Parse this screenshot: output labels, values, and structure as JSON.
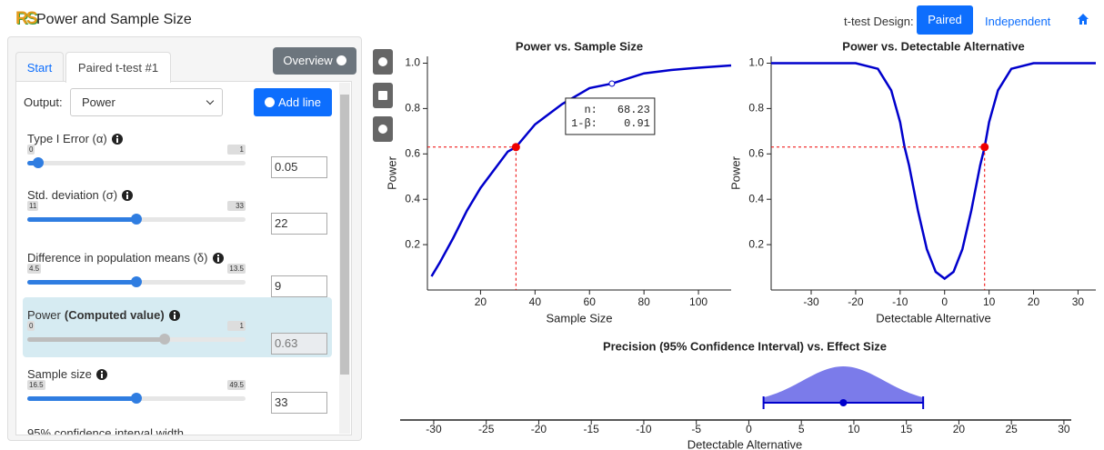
{
  "header": {
    "logo": "RS",
    "title": "Power and Sample Size",
    "design_label": "t-test Design:",
    "design_options": [
      "Paired",
      "Independent"
    ]
  },
  "panel": {
    "tabs": [
      "Start",
      "Paired t-test #1"
    ],
    "overview": "Overview",
    "output_label": "Output:",
    "output": "Power",
    "add_line": "Add line",
    "inputs": [
      {
        "label": "Type I Error (α)",
        "min": 0,
        "max": 1,
        "value": 0.05
      },
      {
        "label": "Std. deviation (σ)",
        "min": 11,
        "max": 33,
        "value": 22
      },
      {
        "label": "Difference in population means (δ)",
        "min": 4.5,
        "max": 13.5,
        "value": 9
      },
      {
        "label": "Power",
        "note": "(Computed value)",
        "min": 0,
        "max": 1,
        "value": 0.63,
        "computed": true
      },
      {
        "label": "Sample size",
        "min": 16.5,
        "max": 49.5,
        "value": 33
      }
    ],
    "clipped_label": "95% confidence interval width"
  },
  "chart_data": [
    {
      "type": "line",
      "title": "Power vs. Sample Size",
      "x_label": "Sample Size",
      "y_label": "Power",
      "x": [
        2,
        5,
        10,
        15,
        20,
        25,
        30,
        33,
        40,
        50,
        60,
        68.23,
        80,
        90,
        100,
        112
      ],
      "series": [
        {
          "color": "#0000cc",
          "values": [
            0.06,
            0.12,
            0.23,
            0.35,
            0.45,
            0.53,
            0.61,
            0.63,
            0.73,
            0.82,
            0.89,
            0.91,
            0.955,
            0.97,
            0.98,
            0.99
          ]
        }
      ],
      "xlim": [
        0.5,
        112
      ],
      "ylim": [
        0,
        1.03
      ],
      "xticks": [
        20,
        40,
        60,
        80,
        100
      ],
      "yticks": [
        0.2,
        0.4,
        0.6,
        {
          "value": 0.8,
          "label": "0.8"
        },
        {
          "value": 1,
          "label": "1.0"
        }
      ],
      "highlight": {
        "x": 33,
        "y": 0.63,
        "color": "#ee0000"
      },
      "hover": {
        "x": 68.23,
        "y": 0.91,
        "x_name": "n:",
        "y_name": "1-β:"
      }
    },
    {
      "type": "line",
      "title": "Power vs. Detectable Alternative",
      "x_label": "Detectable Alternative",
      "y_label": "Power",
      "x": [
        -39,
        -25,
        -20,
        -15,
        -12,
        -10,
        -9,
        -8,
        -6,
        -4,
        -2,
        0,
        2,
        4,
        6,
        8,
        9,
        10,
        12,
        15,
        20,
        25,
        34
      ],
      "series": [
        {
          "color": "#0000cc",
          "values": [
            1,
            1,
            1,
            0.975,
            0.88,
            0.74,
            0.63,
            0.55,
            0.35,
            0.18,
            0.08,
            0.05,
            0.08,
            0.18,
            0.35,
            0.55,
            0.63,
            0.74,
            0.88,
            0.975,
            1,
            1,
            1
          ]
        }
      ],
      "xlim": [
        -39,
        34
      ],
      "ylim": [
        0,
        1.03
      ],
      "xticks": [
        -30,
        -20,
        -10,
        0,
        10,
        20,
        30
      ],
      "yticks": [
        0.2,
        0.4,
        0.6,
        {
          "value": 0.8,
          "label": "0.8"
        },
        {
          "value": 1,
          "label": "1.0"
        }
      ],
      "highlight": {
        "x": 9,
        "y": 0.63,
        "color": "#ee0000"
      }
    },
    {
      "type": "interval",
      "title": "Precision (95% Confidence Interval) vs. Effect Size",
      "x_label": "Detectable Alternative",
      "estimate": 9,
      "lower": 1.4,
      "upper": 16.6,
      "color": "#0000cc",
      "fill": "#7b7bea",
      "xlim": [
        -33.2,
        30.7
      ],
      "xticks": [
        -30,
        -25,
        -20,
        -15,
        -10,
        -5,
        0,
        5,
        10,
        15,
        20,
        25,
        30
      ]
    }
  ]
}
